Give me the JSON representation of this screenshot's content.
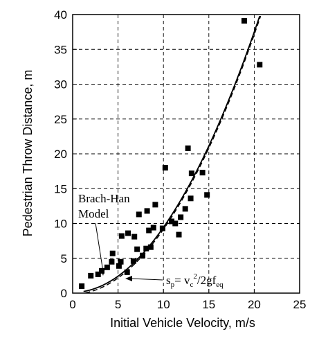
{
  "chart_data": {
    "type": "scatter",
    "xlabel": "Initial Vehicle Velocity, m/s",
    "ylabel": "Pedestrian Throw Distance, m",
    "xlim": [
      0,
      25
    ],
    "ylim": [
      0,
      40
    ],
    "xticks": [
      "0",
      "5",
      "10",
      "15",
      "20",
      "25"
    ],
    "yticks": [
      "0",
      "5",
      "10",
      "15",
      "20",
      "25",
      "30",
      "35",
      "40"
    ],
    "grid": true,
    "points": [
      {
        "x": 1.0,
        "y": 1.0
      },
      {
        "x": 2.0,
        "y": 2.5
      },
      {
        "x": 2.8,
        "y": 2.7
      },
      {
        "x": 3.2,
        "y": 3.2
      },
      {
        "x": 3.8,
        "y": 3.7
      },
      {
        "x": 4.3,
        "y": 4.5
      },
      {
        "x": 4.4,
        "y": 5.7
      },
      {
        "x": 5.1,
        "y": 3.9
      },
      {
        "x": 5.3,
        "y": 4.5
      },
      {
        "x": 5.4,
        "y": 8.2
      },
      {
        "x": 6.0,
        "y": 3.0
      },
      {
        "x": 6.1,
        "y": 8.6
      },
      {
        "x": 6.7,
        "y": 4.6
      },
      {
        "x": 6.8,
        "y": 8.1
      },
      {
        "x": 7.1,
        "y": 6.3
      },
      {
        "x": 7.3,
        "y": 11.3
      },
      {
        "x": 7.7,
        "y": 5.4
      },
      {
        "x": 8.1,
        "y": 6.4
      },
      {
        "x": 8.2,
        "y": 11.8
      },
      {
        "x": 8.4,
        "y": 9.0
      },
      {
        "x": 8.6,
        "y": 6.6
      },
      {
        "x": 8.9,
        "y": 9.4
      },
      {
        "x": 9.1,
        "y": 12.7
      },
      {
        "x": 9.9,
        "y": 9.3
      },
      {
        "x": 10.2,
        "y": 18.0
      },
      {
        "x": 10.9,
        "y": 10.3
      },
      {
        "x": 11.3,
        "y": 10.0
      },
      {
        "x": 11.7,
        "y": 8.4
      },
      {
        "x": 11.9,
        "y": 10.9
      },
      {
        "x": 12.4,
        "y": 12.1
      },
      {
        "x": 12.7,
        "y": 20.8
      },
      {
        "x": 13.0,
        "y": 13.6
      },
      {
        "x": 13.1,
        "y": 17.2
      },
      {
        "x": 14.3,
        "y": 17.3
      },
      {
        "x": 14.8,
        "y": 14.1
      },
      {
        "x": 18.9,
        "y": 39.1
      },
      {
        "x": 20.6,
        "y": 32.8
      }
    ],
    "annotations": [
      {
        "text_lines": [
          "Brach-Han",
          "Model"
        ]
      },
      {
        "formula": {
          "base1": "s",
          "sub1": "p",
          "eq": "= v",
          "sub2": "c",
          "sup": "2",
          "rest": "/2gf",
          "sub3": "eq"
        }
      }
    ]
  }
}
